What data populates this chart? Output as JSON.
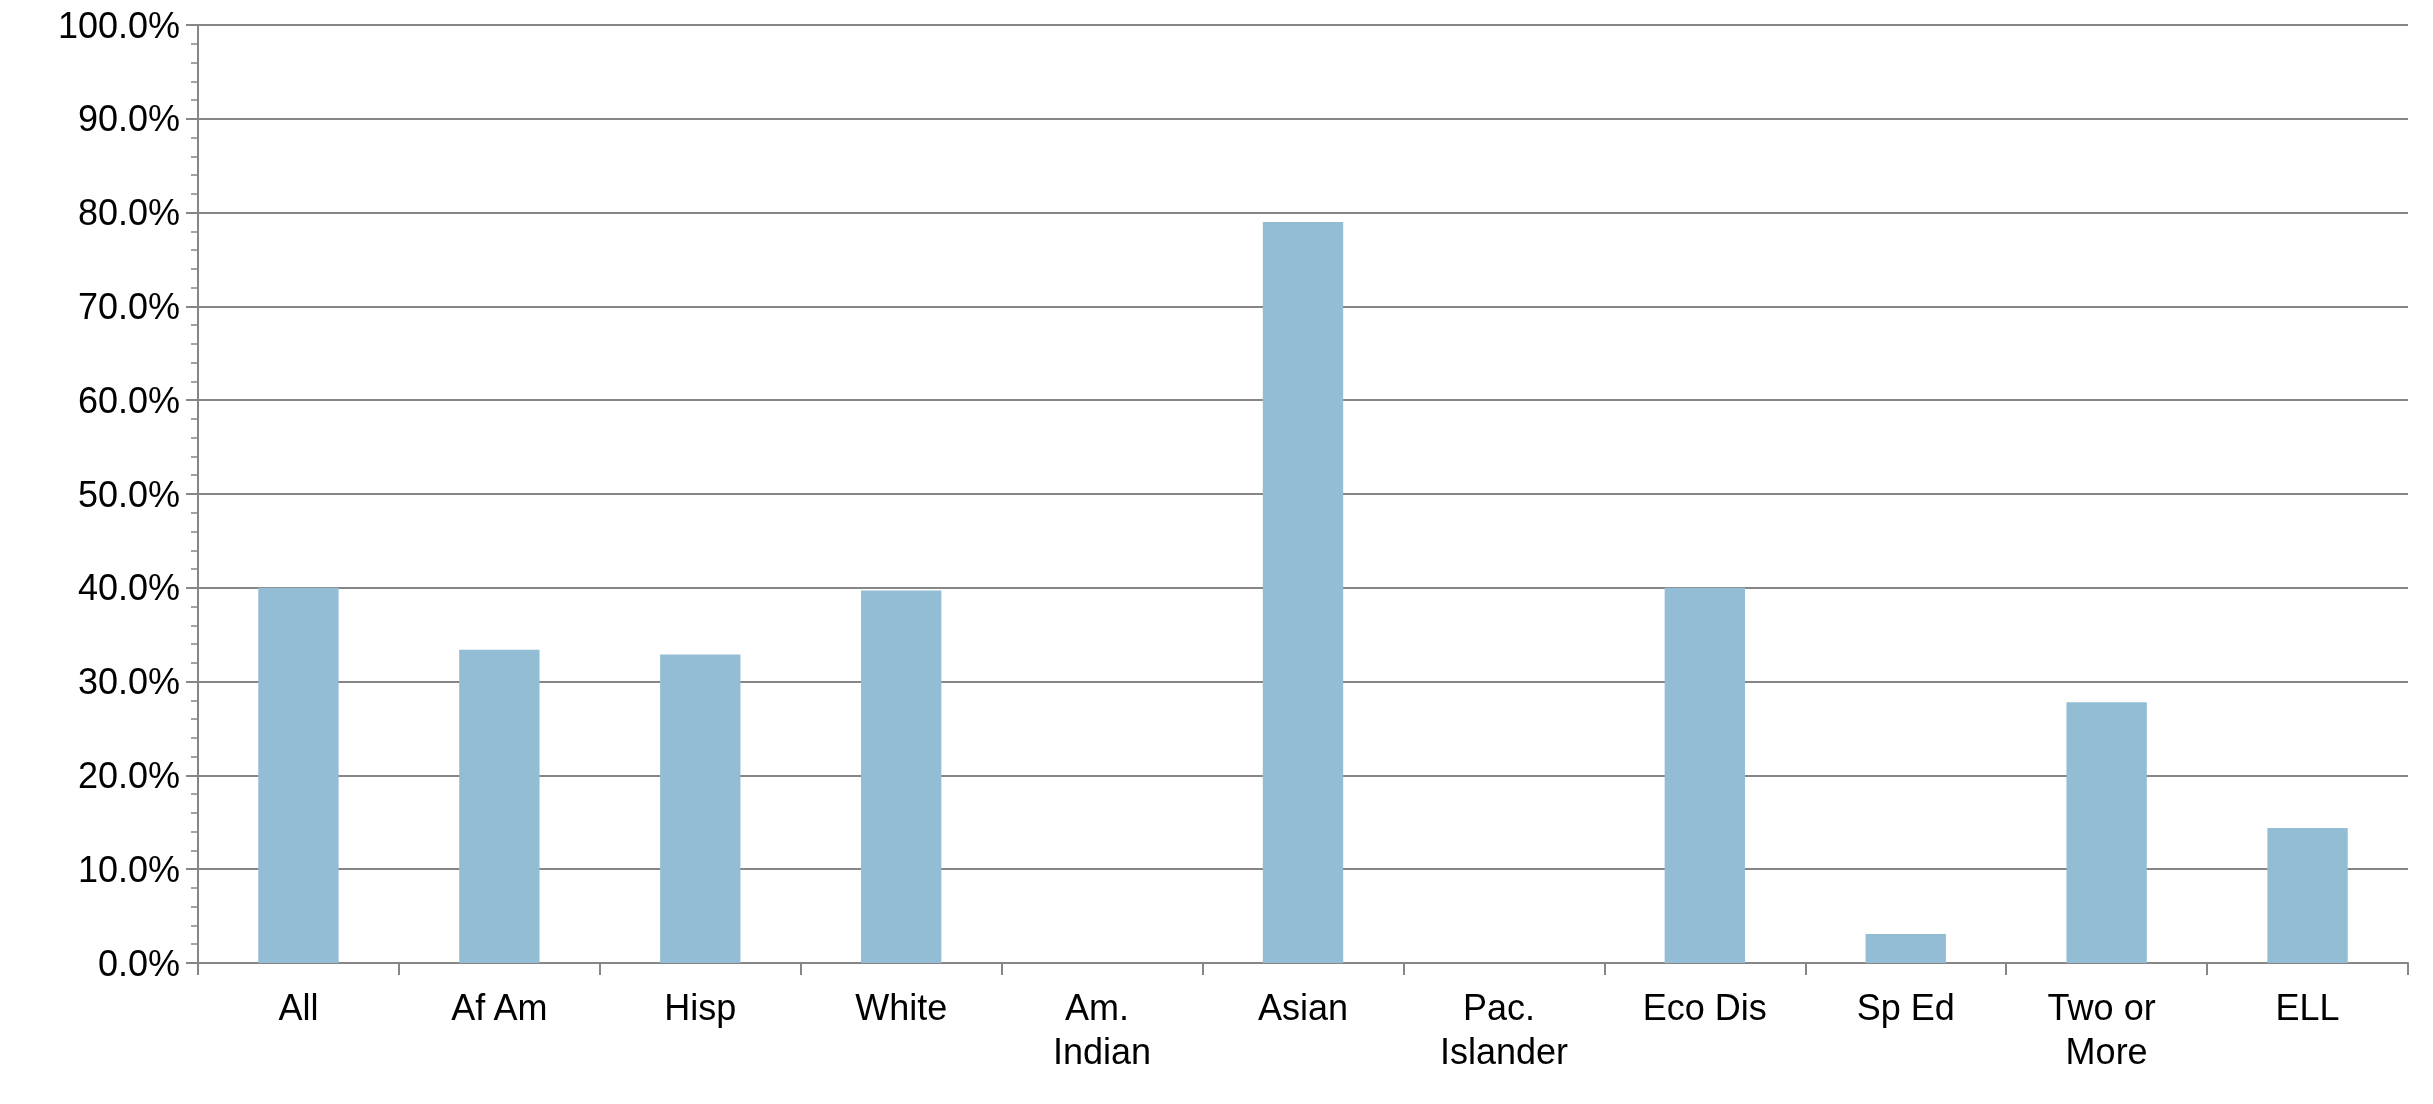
{
  "chart_data": {
    "type": "bar",
    "categories": [
      "All",
      "Af Am",
      "Hisp",
      "White",
      "Am. Indian",
      "Asian",
      "Pac. Islander",
      "Eco Dis",
      "Sp Ed",
      "Two or More",
      "ELL"
    ],
    "values": [
      40.0,
      33.4,
      32.9,
      39.7,
      null,
      79.0,
      null,
      40.0,
      3.1,
      27.8,
      14.4
    ],
    "color": "#93bdd4",
    "ylim": [
      0,
      100
    ],
    "yticks": [
      {
        "value": 0,
        "label": "0.0%"
      },
      {
        "value": 2,
        "label": null
      },
      {
        "value": 4,
        "label": null
      },
      {
        "value": 6,
        "label": null
      },
      {
        "value": 8,
        "label": null
      },
      {
        "value": 10,
        "label": "10.0%"
      },
      {
        "value": 12,
        "label": null
      },
      {
        "value": 14,
        "label": null
      },
      {
        "value": 16,
        "label": null
      },
      {
        "value": 18,
        "label": null
      },
      {
        "value": 20,
        "label": "20.0%"
      },
      {
        "value": 22,
        "label": null
      },
      {
        "value": 24,
        "label": null
      },
      {
        "value": 26,
        "label": null
      },
      {
        "value": 28,
        "label": null
      },
      {
        "value": 30,
        "label": "30.0%"
      },
      {
        "value": 32,
        "label": null
      },
      {
        "value": 34,
        "label": null
      },
      {
        "value": 36,
        "label": null
      },
      {
        "value": 38,
        "label": null
      },
      {
        "value": 40,
        "label": "40.0%"
      },
      {
        "value": 42,
        "label": null
      },
      {
        "value": 44,
        "label": null
      },
      {
        "value": 46,
        "label": null
      },
      {
        "value": 48,
        "label": null
      },
      {
        "value": 50,
        "label": "50.0%"
      },
      {
        "value": 52,
        "label": null
      },
      {
        "value": 54,
        "label": null
      },
      {
        "value": 56,
        "label": null
      },
      {
        "value": 58,
        "label": null
      },
      {
        "value": 60,
        "label": "60.0%"
      },
      {
        "value": 62,
        "label": null
      },
      {
        "value": 64,
        "label": null
      },
      {
        "value": 66,
        "label": null
      },
      {
        "value": 68,
        "label": null
      },
      {
        "value": 70,
        "label": "70.0%"
      },
      {
        "value": 72,
        "label": null
      },
      {
        "value": 74,
        "label": null
      },
      {
        "value": 76,
        "label": null
      },
      {
        "value": 78,
        "label": null
      },
      {
        "value": 80,
        "label": "80.0%"
      },
      {
        "value": 82,
        "label": null
      },
      {
        "value": 84,
        "label": null
      },
      {
        "value": 86,
        "label": null
      },
      {
        "value": 88,
        "label": null
      },
      {
        "value": 90,
        "label": "90.0%"
      },
      {
        "value": 92,
        "label": null
      },
      {
        "value": 94,
        "label": null
      },
      {
        "value": 96,
        "label": null
      },
      {
        "value": 98,
        "label": null
      },
      {
        "value": 100,
        "label": "100.0%"
      }
    ],
    "grid": "y"
  }
}
